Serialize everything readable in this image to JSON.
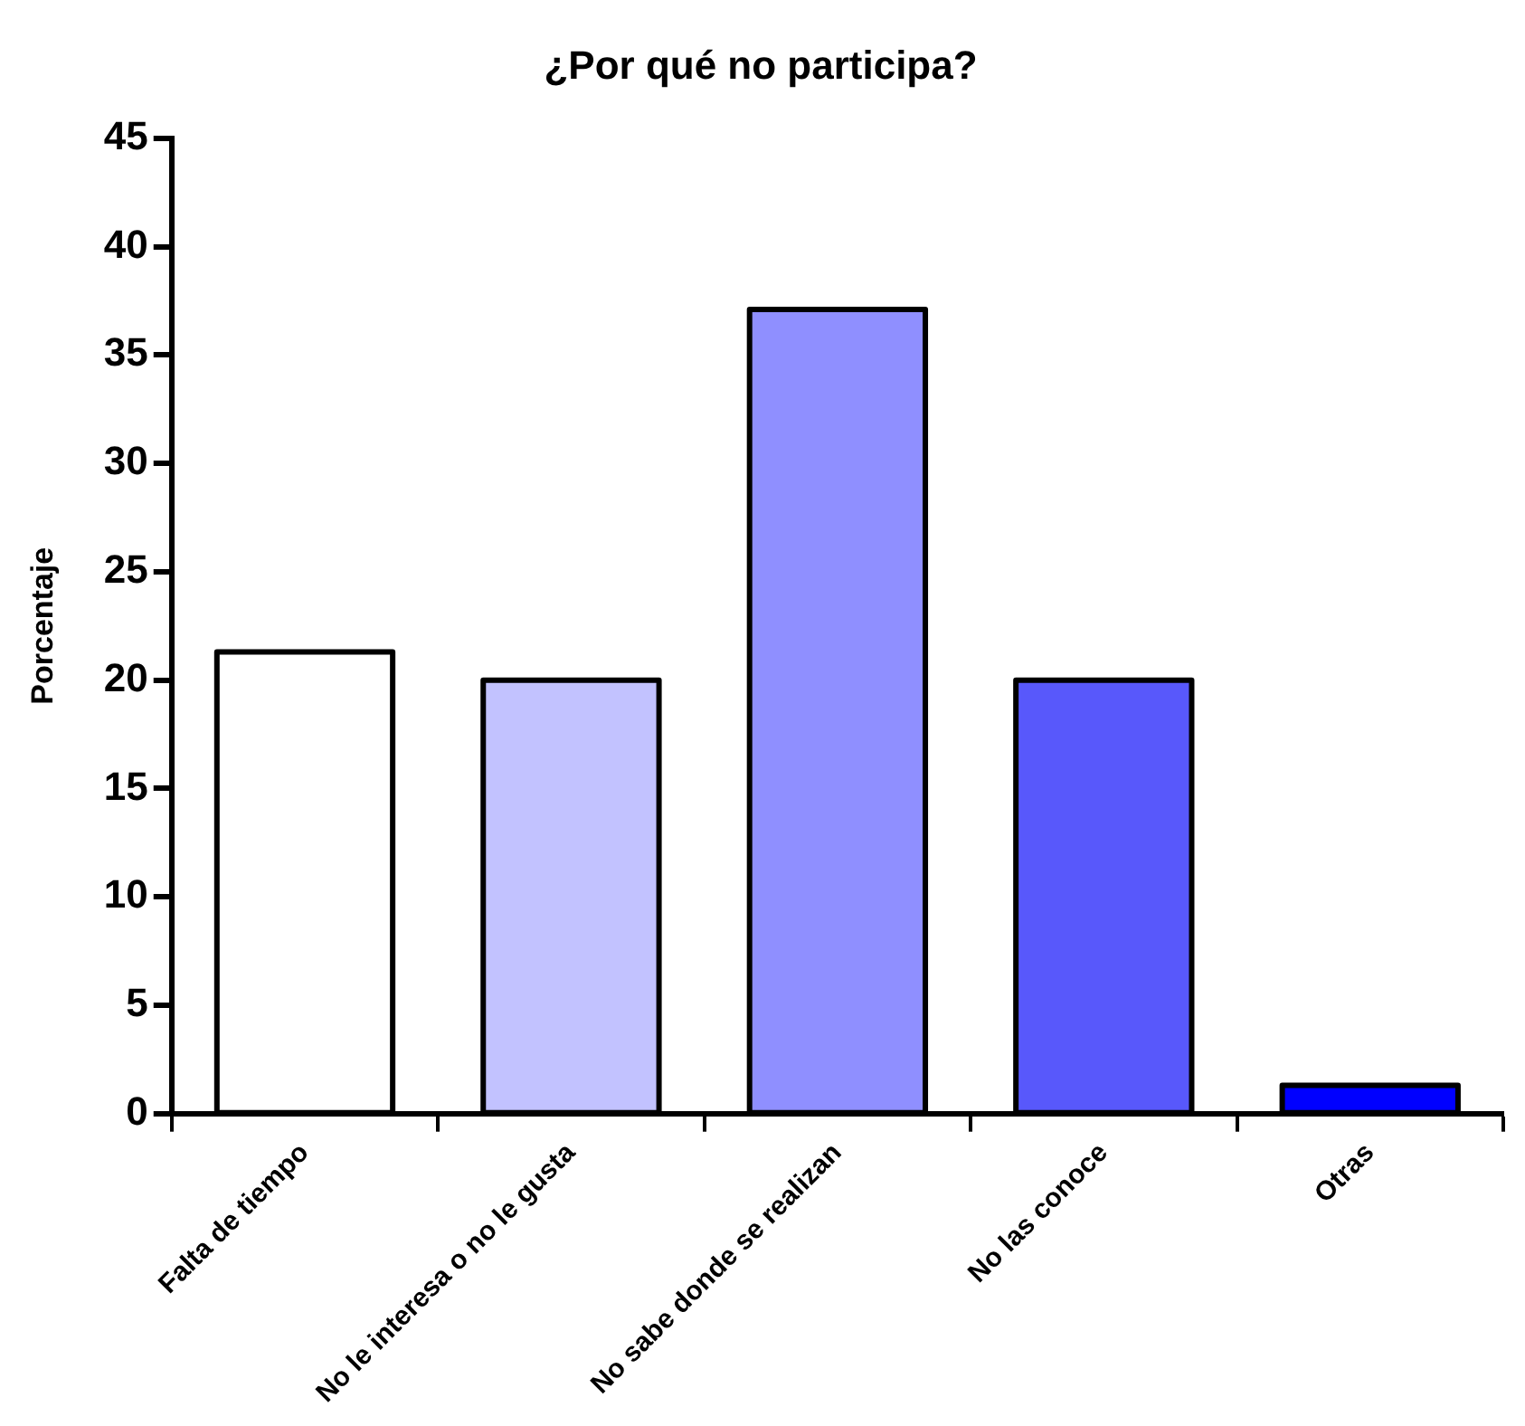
{
  "chart_data": {
    "type": "bar",
    "title": "¿Por qué no participa?",
    "ylabel": "Porcentaje",
    "categories": [
      "Falta de tiempo",
      "No le interesa o no le gusta",
      "No sabe donde se realizan",
      "No las conoce",
      "Otras"
    ],
    "values": [
      21.3,
      20,
      37.1,
      20,
      1.3
    ],
    "colors": [
      "#ffffff",
      "#c2c2ff",
      "#8f8fff",
      "#5858fb",
      "#0000ff"
    ],
    "ylim": [
      0,
      45
    ],
    "yticks": [
      0,
      5,
      10,
      15,
      20,
      25,
      30,
      35,
      40,
      45
    ],
    "grid": false,
    "legend": false
  }
}
